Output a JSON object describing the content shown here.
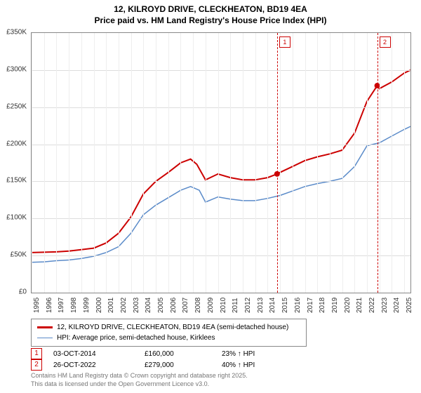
{
  "title_line1": "12, KILROYD DRIVE, CLECKHEATON, BD19 4EA",
  "title_line2": "Price paid vs. HM Land Registry's House Price Index (HPI)",
  "chart": {
    "type": "line",
    "background_color": "#ffffff",
    "grid_color": "#dddddd",
    "border_color": "#888888",
    "x": {
      "min": 1995,
      "max": 2025.5,
      "ticks": [
        1995,
        1996,
        1997,
        1998,
        1999,
        2000,
        2001,
        2002,
        2003,
        2004,
        2005,
        2006,
        2007,
        2008,
        2009,
        2010,
        2011,
        2012,
        2013,
        2014,
        2015,
        2016,
        2017,
        2018,
        2019,
        2020,
        2021,
        2022,
        2023,
        2024,
        2025
      ]
    },
    "y": {
      "min": 0,
      "max": 350000,
      "label_prefix": "£",
      "label_suffix": "K",
      "ticks": [
        0,
        50000,
        100000,
        150000,
        200000,
        250000,
        300000,
        350000
      ]
    },
    "series": [
      {
        "name": "12, KILROYD DRIVE, CLECKHEATON, BD19 4EA (semi-detached house)",
        "color": "#cc0000",
        "width": 2,
        "points": [
          [
            1995,
            54000
          ],
          [
            1996,
            54500
          ],
          [
            1997,
            55000
          ],
          [
            1998,
            56000
          ],
          [
            1999,
            58000
          ],
          [
            2000,
            60000
          ],
          [
            2001,
            67000
          ],
          [
            2002,
            80000
          ],
          [
            2003,
            102000
          ],
          [
            2004,
            133000
          ],
          [
            2005,
            150000
          ],
          [
            2006,
            162000
          ],
          [
            2007,
            175000
          ],
          [
            2007.8,
            180000
          ],
          [
            2008.3,
            173000
          ],
          [
            2009,
            152000
          ],
          [
            2010,
            160000
          ],
          [
            2011,
            155000
          ],
          [
            2012,
            152000
          ],
          [
            2013,
            152000
          ],
          [
            2014,
            155000
          ],
          [
            2014.76,
            160000
          ],
          [
            2015,
            162000
          ],
          [
            2016,
            170000
          ],
          [
            2017,
            178000
          ],
          [
            2018,
            183000
          ],
          [
            2019,
            187000
          ],
          [
            2020,
            192000
          ],
          [
            2021,
            215000
          ],
          [
            2022,
            258000
          ],
          [
            2022.82,
            279000
          ],
          [
            2023,
            275000
          ],
          [
            2024,
            284000
          ],
          [
            2025,
            296000
          ],
          [
            2025.5,
            300000
          ]
        ]
      },
      {
        "name": "HPI: Average price, semi-detached house, Kirklees",
        "color": "#5b8bc9",
        "width": 1.5,
        "points": [
          [
            1995,
            41000
          ],
          [
            1996,
            41500
          ],
          [
            1997,
            43000
          ],
          [
            1998,
            44000
          ],
          [
            1999,
            46000
          ],
          [
            2000,
            49000
          ],
          [
            2001,
            54000
          ],
          [
            2002,
            62000
          ],
          [
            2003,
            80000
          ],
          [
            2004,
            105000
          ],
          [
            2005,
            118000
          ],
          [
            2006,
            128000
          ],
          [
            2007,
            138000
          ],
          [
            2007.8,
            143000
          ],
          [
            2008.5,
            138000
          ],
          [
            2009,
            122000
          ],
          [
            2010,
            129000
          ],
          [
            2011,
            126000
          ],
          [
            2012,
            124000
          ],
          [
            2013,
            124000
          ],
          [
            2014,
            127000
          ],
          [
            2015,
            131000
          ],
          [
            2016,
            137000
          ],
          [
            2017,
            143000
          ],
          [
            2018,
            147000
          ],
          [
            2019,
            150000
          ],
          [
            2020,
            154000
          ],
          [
            2021,
            170000
          ],
          [
            2022,
            198000
          ],
          [
            2023,
            202000
          ],
          [
            2024,
            211000
          ],
          [
            2025,
            220000
          ],
          [
            2025.5,
            224000
          ]
        ]
      }
    ],
    "sale_points": [
      {
        "x": 2014.76,
        "y": 160000
      },
      {
        "x": 2022.82,
        "y": 279000
      }
    ],
    "markers": [
      {
        "n": "1",
        "x": 2014.76
      },
      {
        "n": "2",
        "x": 2022.82
      }
    ]
  },
  "legend": {
    "rows": [
      {
        "color": "#cc0000",
        "text": "12, KILROYD DRIVE, CLECKHEATON, BD19 4EA (semi-detached house)"
      },
      {
        "color": "#5b8bc9",
        "text": "HPI: Average price, semi-detached house, Kirklees"
      }
    ]
  },
  "table": {
    "rows": [
      {
        "n": "1",
        "date": "03-OCT-2014",
        "price": "£160,000",
        "rel": "23% ↑ HPI"
      },
      {
        "n": "2",
        "date": "26-OCT-2022",
        "price": "£279,000",
        "rel": "40% ↑ HPI"
      }
    ]
  },
  "footnote_line1": "Contains HM Land Registry data © Crown copyright and database right 2025.",
  "footnote_line2": "This data is licensed under the Open Government Licence v3.0."
}
